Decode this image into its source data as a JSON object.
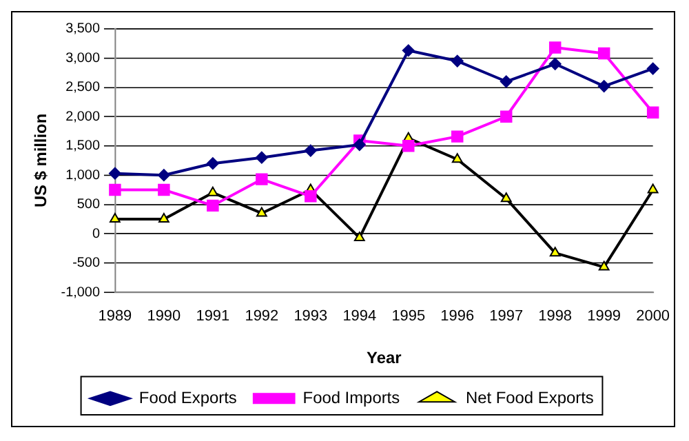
{
  "chart_data": {
    "type": "line",
    "xlabel": "Year",
    "ylabel": "US $ million",
    "categories": [
      "1989",
      "1990",
      "1991",
      "1992",
      "1993",
      "1994",
      "1995",
      "1996",
      "1997",
      "1998",
      "1999",
      "2000"
    ],
    "series": [
      {
        "name": "Food Exports",
        "color": "#000080",
        "marker": "diamond",
        "values": [
          1030,
          1000,
          1200,
          1300,
          1420,
          1520,
          3130,
          2950,
          2600,
          2900,
          2520,
          2820
        ]
      },
      {
        "name": "Food Imports",
        "color": "#ff00ff",
        "marker": "square",
        "values": [
          750,
          750,
          480,
          930,
          640,
          1590,
          1500,
          1660,
          2000,
          3180,
          3080,
          2070
        ]
      },
      {
        "name": "Net Food Exports",
        "color": "#000000",
        "marker": "triangle",
        "values": [
          250,
          250,
          700,
          350,
          750,
          -70,
          1630,
          1270,
          600,
          -330,
          -570,
          750
        ]
      }
    ],
    "ylim": [
      -1000,
      3500
    ],
    "yticks": [
      {
        "value": -1000,
        "label": "-1,000"
      },
      -500,
      0,
      500,
      {
        "value": 1000,
        "label": "1,000"
      },
      {
        "value": 1500,
        "label": "1,500"
      },
      {
        "value": 2000,
        "label": "2,000"
      },
      {
        "value": 2500,
        "label": "2,500"
      },
      {
        "value": 3000,
        "label": "3,000"
      },
      {
        "value": 3500,
        "label": "3,500"
      }
    ],
    "grid": "y",
    "legend": "bottom"
  }
}
